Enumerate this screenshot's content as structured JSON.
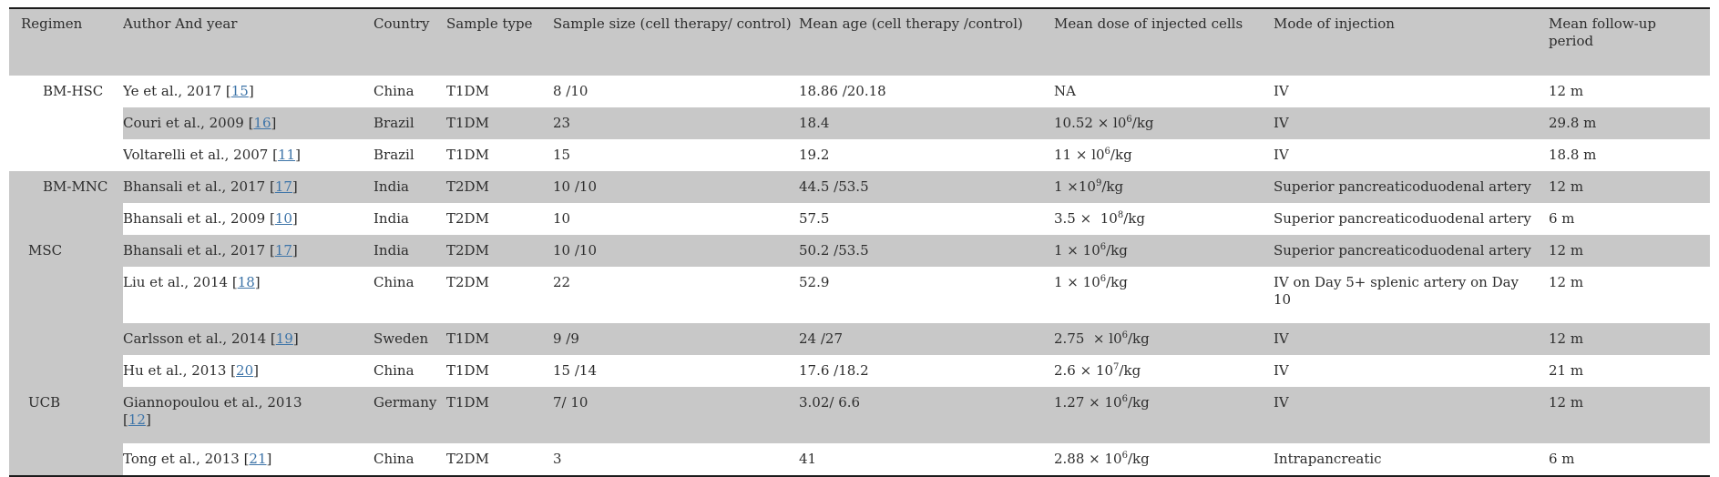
{
  "table": {
    "columns": [
      "Regimen",
      "Author And year",
      "Country",
      "Sample type",
      "Sample size (cell therapy/ control)",
      "Mean age (cell therapy /control)",
      "Mean dose of injected cells",
      "Mode of injection",
      "Mean follow-up period"
    ],
    "colors": {
      "row_shade": "#c8c8c8",
      "header_bg": "#c8c8c8",
      "link": "#3d74a8",
      "border": "#1c1c1c",
      "text": "#2d2d2d"
    },
    "ref_brackets": {
      "open": "[",
      "close": "]"
    },
    "groups": [
      {
        "label": "BM-HSC",
        "rows": 3,
        "shaded": false,
        "indent": "wide"
      },
      {
        "label": "BM-MNC",
        "rows": 2,
        "shaded": true,
        "indent": "wide"
      },
      {
        "label": "MSC",
        "rows": 4,
        "shaded": true,
        "indent": "narrow"
      },
      {
        "label": "UCB",
        "rows": 2,
        "shaded": true,
        "indent": "narrow"
      }
    ],
    "rows": [
      {
        "author": "Ye et al., 2017",
        "ref": "15",
        "ref_newline": false,
        "country": "China",
        "sample_type": "T1DM",
        "sample_size": "8 /10",
        "mean_age": "18.86 /20.18",
        "dose": {
          "pre": "NA",
          "sup": "",
          "post": ""
        },
        "mode_lines": [
          "IV"
        ],
        "follow_up": "12 m",
        "shaded": false,
        "extra_pad": false
      },
      {
        "author": "Couri et al., 2009",
        "ref": "16",
        "ref_newline": false,
        "country": "Brazil",
        "sample_type": "T1DM",
        "sample_size": "23",
        "mean_age": "18.4",
        "dose": {
          "pre": "10.52 × l0",
          "sup": "6",
          "post": "/kg"
        },
        "mode_lines": [
          "IV"
        ],
        "follow_up": "29.8 m",
        "shaded": true,
        "extra_pad": false
      },
      {
        "author": "Voltarelli et al., 2007",
        "ref": "11",
        "ref_newline": false,
        "country": "Brazil",
        "sample_type": "T1DM",
        "sample_size": "15",
        "mean_age": "19.2",
        "dose": {
          "pre": "11 × l0",
          "sup": "6",
          "post": "/kg"
        },
        "mode_lines": [
          "IV"
        ],
        "follow_up": "18.8 m",
        "shaded": false,
        "extra_pad": false
      },
      {
        "author": "Bhansali et al., 2017",
        "ref": "17",
        "ref_newline": false,
        "country": "India",
        "sample_type": "T2DM",
        "sample_size": "10 /10",
        "mean_age": "44.5 /53.5",
        "dose": {
          "pre": "1 ×10",
          "sup": "9",
          "post": "/kg"
        },
        "mode_lines": [
          "Superior pancreaticoduodenal artery"
        ],
        "follow_up": "12 m",
        "shaded": true,
        "extra_pad": false
      },
      {
        "author": "Bhansali et al., 2009",
        "ref": "10",
        "ref_newline": false,
        "country": "India",
        "sample_type": "T2DM",
        "sample_size": "10",
        "mean_age": "57.5",
        "dose": {
          "pre": "3.5 ×  10",
          "sup": "8",
          "post": "/kg"
        },
        "mode_lines": [
          "Superior pancreaticoduodenal artery"
        ],
        "follow_up": "6 m",
        "shaded": false,
        "extra_pad": false
      },
      {
        "author": "Bhansali et al., 2017",
        "ref": "17",
        "ref_newline": false,
        "country": "India",
        "sample_type": "T2DM",
        "sample_size": "10 /10",
        "mean_age": "50.2 /53.5",
        "dose": {
          "pre": "1 × 10",
          "sup": "6",
          "post": "/kg"
        },
        "mode_lines": [
          "Superior pancreaticoduodenal artery"
        ],
        "follow_up": "12 m",
        "shaded": true,
        "extra_pad": false
      },
      {
        "author": "Liu et al., 2014",
        "ref": "18",
        "ref_newline": false,
        "country": "China",
        "sample_type": "T2DM",
        "sample_size": "22",
        "mean_age": "52.9",
        "dose": {
          "pre": "1 × 10",
          "sup": "6",
          "post": "/kg"
        },
        "mode_lines": [
          "IV on Day 5+ splenic artery on Day",
          "10"
        ],
        "follow_up": "12 m",
        "shaded": false,
        "extra_pad": true
      },
      {
        "author": "Carlsson et al., 2014",
        "ref": "19",
        "ref_newline": false,
        "country": "Sweden",
        "sample_type": "T1DM",
        "sample_size": "9 /9",
        "mean_age": "24 /27",
        "dose": {
          "pre": "2.75  × l0",
          "sup": "6",
          "post": "/kg"
        },
        "mode_lines": [
          "IV"
        ],
        "follow_up": "12 m",
        "shaded": true,
        "extra_pad": false
      },
      {
        "author": "Hu et al., 2013",
        "ref": "20",
        "ref_newline": false,
        "country": "China",
        "sample_type": "T1DM",
        "sample_size": "15 /14",
        "mean_age": "17.6 /18.2",
        "dose": {
          "pre": "2.6 × 10",
          "sup": "7",
          "post": "/kg"
        },
        "mode_lines": [
          "IV"
        ],
        "follow_up": "21 m",
        "shaded": false,
        "extra_pad": false
      },
      {
        "author": "Giannopoulou et al., 2013",
        "ref": "12",
        "ref_newline": true,
        "country": "Germany",
        "sample_type": "T1DM",
        "sample_size": "7/ 10",
        "mean_age": "3.02/ 6.6",
        "dose": {
          "pre": "1.27 × 10",
          "sup": "6",
          "post": "/kg"
        },
        "mode_lines": [
          "IV"
        ],
        "follow_up": "12 m",
        "shaded": true,
        "extra_pad": true
      },
      {
        "author": "Tong et al., 2013",
        "ref": "21",
        "ref_newline": false,
        "country": "China",
        "sample_type": "T2DM",
        "sample_size": "3",
        "mean_age": "41",
        "dose": {
          "pre": "2.88 × 10",
          "sup": "6",
          "post": "/kg"
        },
        "mode_lines": [
          "Intrapancreatic"
        ],
        "follow_up": "6 m",
        "shaded": false,
        "extra_pad": false
      }
    ]
  }
}
